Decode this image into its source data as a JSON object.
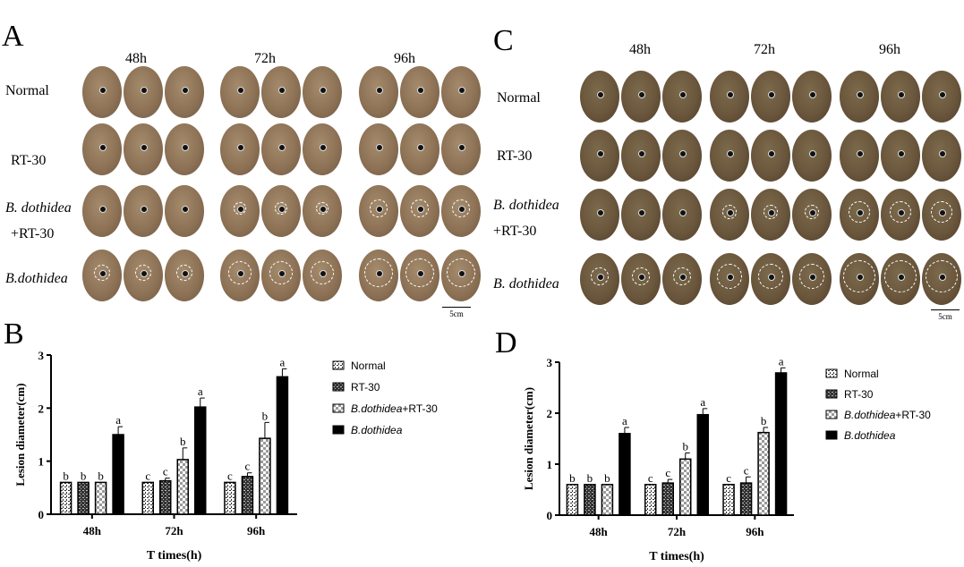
{
  "panels": {
    "A": "A",
    "B": "B",
    "C": "C",
    "D": "D"
  },
  "photo_columns": [
    "48h",
    "72h",
    "96h"
  ],
  "photo_rows": {
    "normal": "Normal",
    "rt30": "RT-30",
    "combo_1": "B. dothidea",
    "combo_2": "+RT-30",
    "bd_A": "B.dothidea",
    "bd_C": "B. dothidea"
  },
  "scale_bar": "5cm",
  "chart_data": [
    {
      "panel": "B",
      "type": "bar",
      "title": "",
      "xlabel": "T times(h)",
      "ylabel": "Lesion diameter(cm)",
      "ylim": [
        0,
        3
      ],
      "yticks": [
        "0",
        "1",
        "2",
        "3"
      ],
      "categories": [
        "48h",
        "72h",
        "96h"
      ],
      "series": [
        {
          "name": "Normal",
          "values": [
            0.6,
            0.6,
            0.6
          ],
          "errors": [
            0,
            0,
            0
          ],
          "letters": [
            "b",
            "c",
            "c"
          ]
        },
        {
          "name": "RT-30",
          "values": [
            0.6,
            0.63,
            0.71
          ],
          "errors": [
            0,
            0.05,
            0.07
          ],
          "letters": [
            "b",
            "c",
            "c"
          ]
        },
        {
          "name": "B.dothidea+RT-30",
          "values": [
            0.6,
            1.03,
            1.43
          ],
          "errors": [
            0,
            0.22,
            0.3
          ],
          "letters": [
            "b",
            "b",
            "b"
          ]
        },
        {
          "name": "B.dothidea",
          "values": [
            1.5,
            2.02,
            2.59
          ],
          "errors": [
            0.15,
            0.17,
            0.15
          ],
          "letters": [
            "a",
            "a",
            "a"
          ]
        }
      ],
      "legend": "right"
    },
    {
      "panel": "D",
      "type": "bar",
      "title": "",
      "xlabel": "T times(h)",
      "ylabel": "Lesion diameter(cm)",
      "ylim": [
        0,
        3
      ],
      "yticks": [
        "0",
        "1",
        "2",
        "3"
      ],
      "categories": [
        "48h",
        "72h",
        "96h"
      ],
      "series": [
        {
          "name": "Normal",
          "values": [
            0.6,
            0.6,
            0.6
          ],
          "errors": [
            0,
            0,
            0
          ],
          "letters": [
            "b",
            "c",
            "c"
          ]
        },
        {
          "name": "RT-30",
          "values": [
            0.6,
            0.63,
            0.63
          ],
          "errors": [
            0,
            0.07,
            0.12
          ],
          "letters": [
            "b",
            "c",
            "c"
          ]
        },
        {
          "name": "B.dothidea+RT-30",
          "values": [
            0.6,
            1.1,
            1.62
          ],
          "errors": [
            0,
            0.12,
            0.1
          ],
          "letters": [
            "b",
            "b",
            "b"
          ]
        },
        {
          "name": "B.dothidea",
          "values": [
            1.6,
            1.97,
            2.79
          ],
          "errors": [
            0.12,
            0.12,
            0.1
          ],
          "letters": [
            "a",
            "a",
            "a"
          ]
        }
      ],
      "legend": "right"
    }
  ]
}
